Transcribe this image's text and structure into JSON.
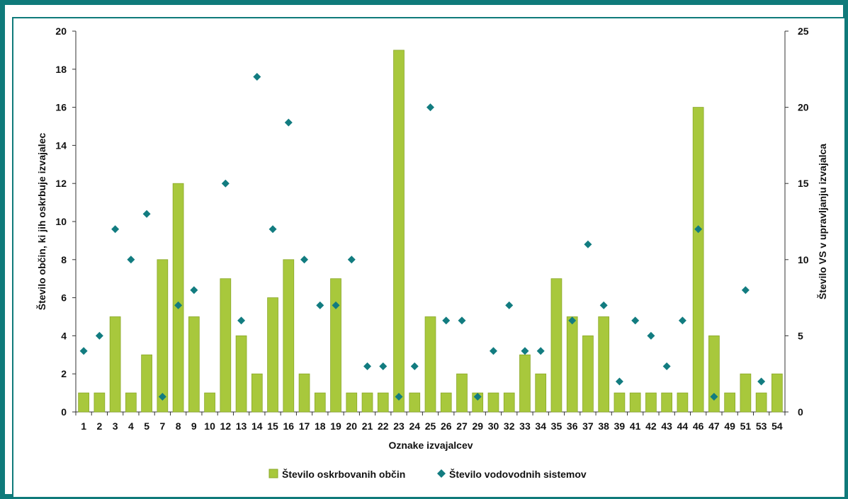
{
  "colors": {
    "frame": "#0f7a7a",
    "bar": "#a8c83c",
    "bar_edge": "#8aa828",
    "marker": "#127c80",
    "axis": "#333333"
  },
  "chart_data": {
    "type": "bar",
    "categories": [
      "1",
      "2",
      "3",
      "4",
      "5",
      "7",
      "8",
      "9",
      "10",
      "12",
      "13",
      "14",
      "15",
      "16",
      "17",
      "18",
      "19",
      "20",
      "21",
      "22",
      "23",
      "24",
      "25",
      "26",
      "27",
      "29",
      "30",
      "32",
      "33",
      "34",
      "35",
      "36",
      "37",
      "38",
      "39",
      "41",
      "42",
      "43",
      "44",
      "46",
      "47",
      "49",
      "51",
      "53",
      "54"
    ],
    "series": [
      {
        "name": "Število oskrbovanih občin",
        "type": "bar",
        "axis": "left",
        "values": [
          1,
          1,
          5,
          1,
          3,
          8,
          12,
          5,
          1,
          7,
          4,
          2,
          6,
          8,
          2,
          1,
          7,
          1,
          1,
          1,
          19,
          1,
          5,
          1,
          2,
          1,
          1,
          1,
          3,
          2,
          7,
          5,
          4,
          5,
          1,
          1,
          1,
          1,
          1,
          16,
          4,
          1,
          2,
          1,
          2
        ]
      },
      {
        "name": "Število vodovodnih sistemov",
        "type": "scatter",
        "marker": "diamond",
        "axis": "right",
        "values": [
          4,
          5,
          12,
          10,
          13,
          1,
          7,
          8,
          null,
          15,
          6,
          22,
          12,
          19,
          10,
          7,
          7,
          10,
          3,
          3,
          1,
          3,
          20,
          6,
          6,
          1,
          4,
          7,
          4,
          4,
          null,
          6,
          11,
          7,
          2,
          6,
          5,
          3,
          6,
          12,
          1,
          null,
          8,
          2,
          null
        ]
      }
    ],
    "xlabel": "Oznake izvajalcev",
    "ylabel": "Število občin, ki jih oskrbuje izvajalec",
    "y2label": "Število VS v upravljanju izvajalca",
    "ylim": [
      0,
      20
    ],
    "yticks": [
      "0",
      "2",
      "4",
      "6",
      "8",
      "10",
      "12",
      "14",
      "16",
      "18",
      "20"
    ],
    "y2lim": [
      0,
      25
    ],
    "y2ticks": [
      "0",
      "5",
      "10",
      "15",
      "20",
      "25"
    ],
    "grid": false,
    "legend_position": "bottom"
  }
}
